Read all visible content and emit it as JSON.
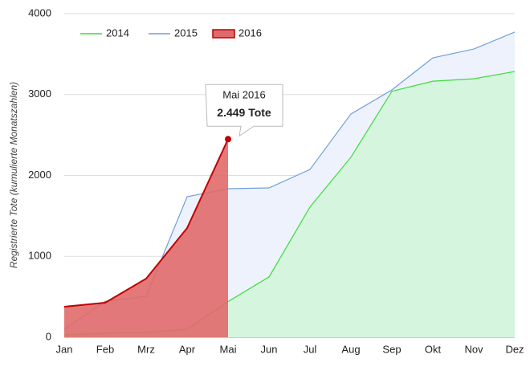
{
  "chart_data": {
    "type": "area",
    "y_label": "Registrierte Tote (kumulierte Monatszahlen)",
    "categories": [
      "Jan",
      "Feb",
      "Mrz",
      "Apr",
      "Mai",
      "Jun",
      "Jul",
      "Aug",
      "Sep",
      "Okt",
      "Nov",
      "Dez"
    ],
    "series": [
      {
        "name": "2014",
        "color": "#3bdc3b",
        "fill": "#d6f5de",
        "values": [
          30,
          50,
          60,
          100,
          440,
          745,
          1610,
          2225,
          3040,
          3165,
          3195,
          3285
        ]
      },
      {
        "name": "2015",
        "color": "#6f9fdc",
        "fill": "#edf2fc",
        "values": [
          100,
          445,
          505,
          1737,
          1836,
          1846,
          2074,
          2760,
          3057,
          3454,
          3563,
          3772
        ]
      },
      {
        "name": "2016",
        "color": "#c00000",
        "fill": "#e06a6a",
        "values": [
          377,
          427,
          725,
          1350,
          2449,
          null,
          null,
          null,
          null,
          null,
          null,
          null
        ],
        "value_labels": [
          null,
          null,
          null,
          null,
          "2.449 Tote",
          null,
          null,
          null,
          null,
          null,
          null,
          null
        ]
      }
    ],
    "tooltip_title": "Mai 2016",
    "ylim": [
      0,
      4000
    ],
    "yticks": [
      0,
      1000,
      2000,
      3000,
      4000
    ],
    "grid": true
  }
}
